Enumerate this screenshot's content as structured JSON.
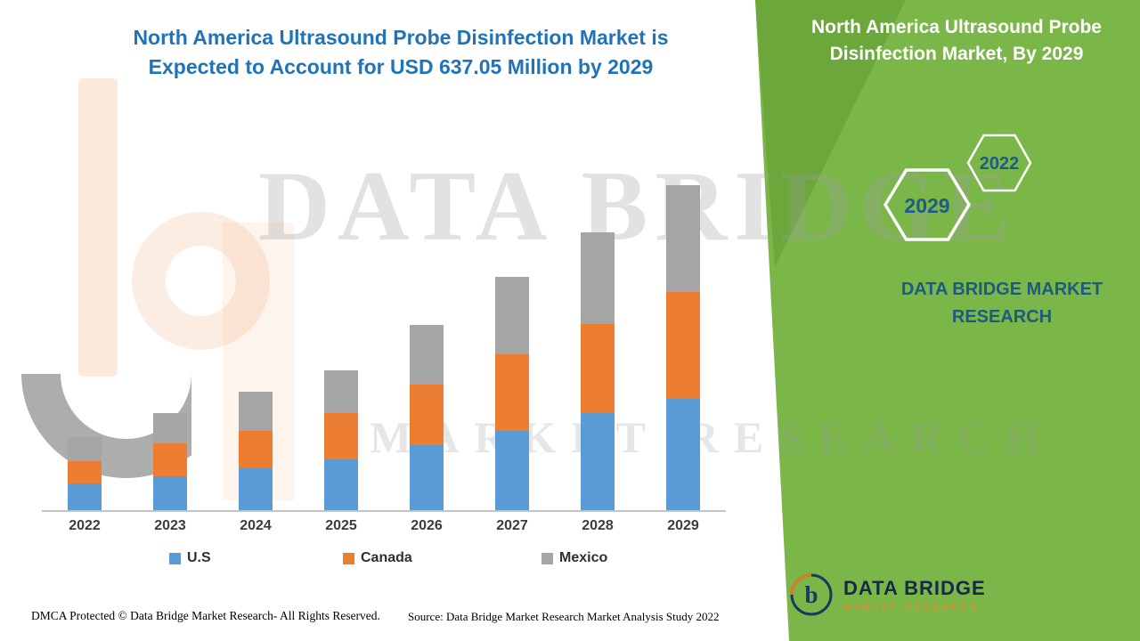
{
  "header": {
    "title_line1": "North America Ultrasound Probe Disinfection Market is",
    "title_line2": "Expected to Account for USD 637.05 Million by 2029"
  },
  "side_panel": {
    "title_line1": "North America Ultrasound Probe",
    "title_line2": "Disinfection Market, By 2029",
    "hex_back_year": "2022",
    "hex_front_year": "2029",
    "brand_line1": "DATA BRIDGE MARKET",
    "brand_line2": "RESEARCH"
  },
  "watermark": {
    "line1": "DATA BRIDGE",
    "line2": "MARKET RESEARCH"
  },
  "chart_data": {
    "type": "bar",
    "stacked": true,
    "title": "North America Ultrasound Probe Disinfection Market is Expected to Account for USD 637.05 Million by 2029",
    "categories": [
      "2022",
      "2023",
      "2024",
      "2025",
      "2026",
      "2027",
      "2028",
      "2029"
    ],
    "series": [
      {
        "name": "U.S",
        "color": "#5b9bd5",
        "values": [
          52,
          66,
          82,
          99,
          127,
          155,
          190,
          218
        ]
      },
      {
        "name": "Canada",
        "color": "#ed7d31",
        "values": [
          44,
          65,
          73,
          91,
          119,
          150,
          175,
          210
        ]
      },
      {
        "name": "Mexico",
        "color": "#a5a5a5",
        "values": [
          47,
          59,
          77,
          84,
          117,
          152,
          180,
          209
        ]
      }
    ],
    "value_unit": "USD Million",
    "total_2029": 637.05,
    "ylim": [
      0,
      660
    ],
    "grid": false,
    "legend_position": "bottom"
  },
  "footer": {
    "dmca": "DMCA Protected © Data Bridge Market Research- All Rights Reserved.",
    "source": "Source: Data Bridge Market Research Market Analysis Study 2022"
  },
  "logo": {
    "name": "DATA BRIDGE",
    "tagline": "MARKET RESEARCH"
  },
  "colors": {
    "panel_green": "#7ab648",
    "panel_green_dark": "#6ba73a",
    "title_blue": "#2173b8",
    "panel_teal": "#1d5b80",
    "bar_us": "#5b9bd5",
    "bar_canada": "#ed7d31",
    "bar_mexico": "#a5a5a5"
  }
}
